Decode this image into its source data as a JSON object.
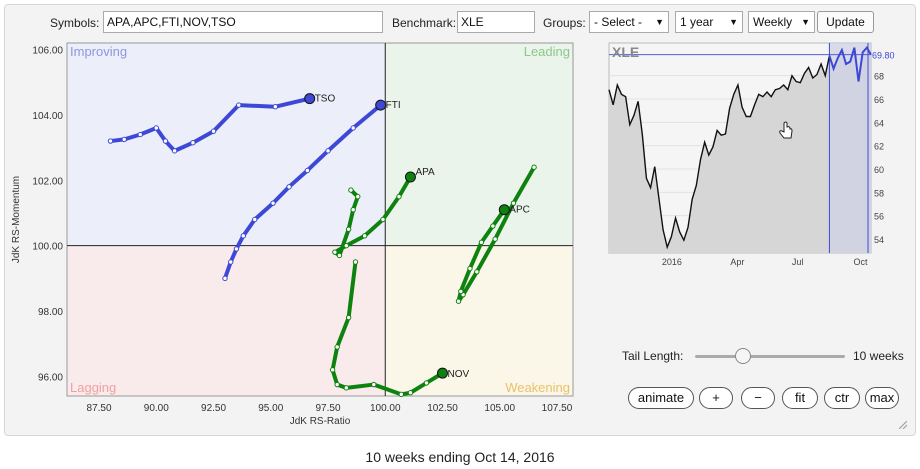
{
  "toolbar": {
    "symbols_label": "Symbols:",
    "symbols_value": "APA,APC,FTI,NOV,TSO",
    "benchmark_label": "Benchmark:",
    "benchmark_value": "XLE",
    "groups_label": "Groups:",
    "groups_value": "- Select -",
    "period_value": "1 year",
    "frequency_value": "Weekly",
    "update_label": "Update"
  },
  "quadrants": {
    "improving": "Improving",
    "leading": "Leading",
    "lagging": "Lagging",
    "weakening": "Weakening",
    "colors": {
      "improving": "#8e96e0",
      "leading": "#8cc88c",
      "lagging": "#f0a0a0",
      "weakening": "#eac06a"
    }
  },
  "chart_data": [
    {
      "type": "scatter",
      "xlabel": "JdK RS-Ratio",
      "ylabel": "JdK RS-Momentum",
      "xlim": [
        86.1,
        108.2
      ],
      "ylim": [
        95.4,
        106.2
      ],
      "x_ticks": [
        "87.50",
        "90.00",
        "92.50",
        "95.00",
        "97.50",
        "100.00",
        "102.50",
        "105.00",
        "107.50"
      ],
      "y_ticks": [
        "96.00",
        "98.00",
        "100.00",
        "102.00",
        "104.00",
        "106.00"
      ],
      "series": [
        {
          "name": "TSO",
          "color": "#3d49d6",
          "x": [
            88.0,
            88.6,
            89.3,
            90.0,
            90.4,
            90.8,
            91.6,
            92.5,
            93.6,
            95.2,
            96.7
          ],
          "y": [
            103.2,
            103.25,
            103.4,
            103.6,
            103.2,
            102.9,
            103.15,
            103.5,
            104.3,
            104.25,
            104.5
          ]
        },
        {
          "name": "FTI",
          "color": "#3d49d6",
          "x": [
            93.0,
            93.25,
            93.5,
            93.8,
            94.3,
            95.1,
            95.8,
            96.6,
            97.5,
            98.6,
            99.8
          ],
          "y": [
            99.0,
            99.5,
            99.9,
            100.3,
            100.8,
            101.3,
            101.8,
            102.3,
            102.9,
            103.6,
            104.3
          ]
        },
        {
          "name": "APA",
          "color": "#0e820e",
          "x": [
            98.5,
            98.8,
            98.6,
            98.4,
            98.0,
            97.8,
            98.3,
            99.1,
            99.9,
            100.6,
            101.1
          ],
          "y": [
            101.7,
            101.5,
            101.1,
            100.5,
            99.7,
            99.8,
            100.0,
            100.3,
            100.8,
            101.5,
            102.1
          ]
        },
        {
          "name": "NOV",
          "color": "#0e820e",
          "x": [
            98.7,
            98.4,
            97.9,
            97.7,
            97.9,
            98.3,
            99.5,
            100.7,
            101.1,
            101.8,
            102.5
          ],
          "y": [
            99.5,
            97.8,
            96.9,
            96.2,
            95.75,
            95.65,
            95.75,
            95.45,
            95.5,
            95.8,
            96.1
          ]
        },
        {
          "name": "APC",
          "color": "#0e820e",
          "x": [
            106.5,
            105.6,
            104.8,
            104.0,
            103.4,
            103.2,
            103.3,
            103.7,
            104.2,
            104.7,
            105.2
          ],
          "y": [
            102.4,
            101.3,
            100.2,
            99.2,
            98.5,
            98.3,
            98.6,
            99.3,
            100.1,
            100.6,
            101.1
          ]
        }
      ],
      "labels": {
        "TSO": "TSO",
        "FTI": "FTI",
        "APA": "APA",
        "NOV": "NOV",
        "APC": "APC"
      }
    },
    {
      "type": "line",
      "title": "XLE",
      "last_value": "69.80",
      "x_ticks": [
        "2016",
        "Apr",
        "Jul",
        "Oct"
      ],
      "y_ticks": [
        "54",
        "56",
        "58",
        "60",
        "62",
        "64",
        "66",
        "68"
      ],
      "ylim": [
        52.8,
        70.8
      ],
      "values": [
        66.8,
        65.5,
        67.2,
        66.4,
        66.2,
        63.8,
        64.6,
        65.8,
        63.0,
        59.2,
        58.4,
        60.2,
        57.5,
        54.8,
        53.3,
        54.2,
        55.8,
        54.6,
        53.9,
        55.0,
        57.4,
        58.6,
        60.8,
        62.3,
        61.2,
        61.9,
        63.3,
        62.9,
        63.0,
        65.2,
        66.4,
        67.2,
        65.3,
        64.5,
        64.5,
        65.5,
        66.4,
        66.2,
        66.6,
        66.2,
        66.8,
        66.9,
        67.2,
        66.8,
        68.0,
        67.5,
        67.4,
        68.2,
        68.7,
        67.8,
        68.1,
        69.0,
        68.0,
        69.7,
        68.6,
        69.5,
        70.2,
        69.0,
        69.2,
        70.4,
        67.5,
        70.0,
        70.4,
        69.8
      ]
    }
  ],
  "controls": {
    "tail_length_label": "Tail Length:",
    "tail_length_value": "10 weeks",
    "tail_fraction": 0.5,
    "buttons": {
      "animate": "animate",
      "plus": "+",
      "minus": "−",
      "fit": "fit",
      "ctr": "ctr",
      "max": "max"
    }
  },
  "footer": "10 weeks ending Oct 14, 2016"
}
